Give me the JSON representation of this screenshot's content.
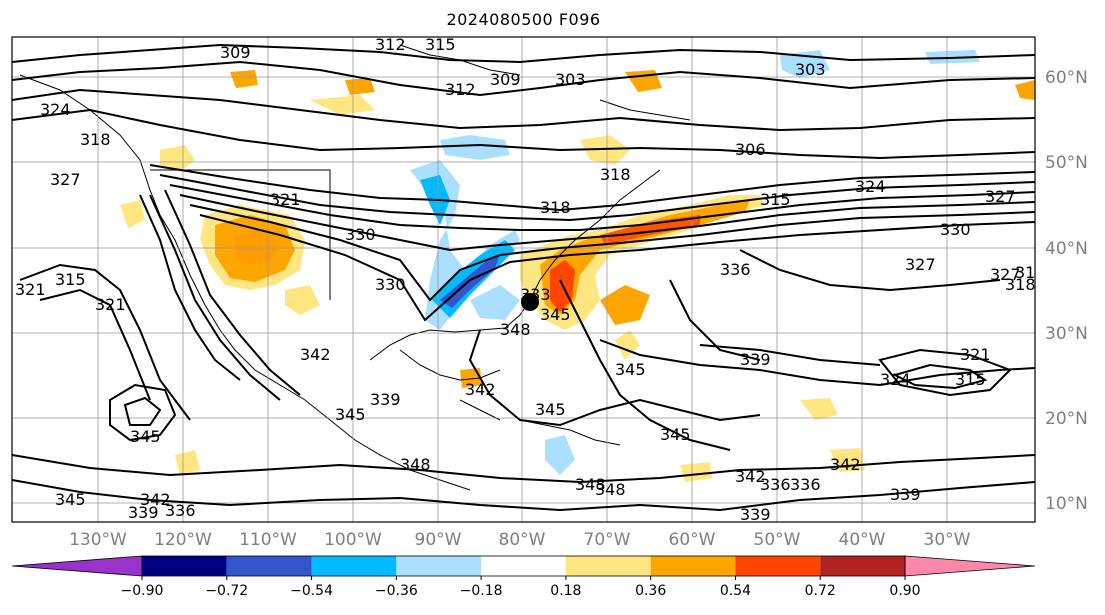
{
  "title": "2024080500 F096",
  "lon_labels": [
    "130°W",
    "120°W",
    "110°W",
    "100°W",
    "90°W",
    "80°W",
    "70°W",
    "60°W",
    "50°W",
    "40°W",
    "30°W"
  ],
  "lat_labels": [
    "60°N",
    "50°N",
    "40°N",
    "30°N",
    "20°N",
    "10°N"
  ],
  "colorbar": {
    "ticks": [
      "−0.90",
      "−0.72",
      "−0.54",
      "−0.36",
      "−0.18",
      "0.18",
      "0.36",
      "0.54",
      "0.72",
      "0.90"
    ],
    "colors": [
      "#9933cc",
      "#000080",
      "#3355cc",
      "#00bbff",
      "#aadfff",
      "#ffffff",
      "#ffe680",
      "#ffa500",
      "#ff4500",
      "#b22222",
      "#ff88aa"
    ]
  },
  "contour_labels": [
    "309",
    "312",
    "315",
    "312",
    "309",
    "303",
    "303",
    "306",
    "318",
    "327",
    "324",
    "321",
    "315",
    "321",
    "327",
    "330",
    "318",
    "318",
    "324",
    "327",
    "330",
    "333",
    "336",
    "327",
    "330",
    "321",
    "318",
    "315",
    "345",
    "342",
    "339",
    "336",
    "348",
    "345",
    "342",
    "339",
    "348",
    "345",
    "342",
    "339",
    "336",
    "339",
    "342",
    "345",
    "342",
    "339",
    "345",
    "348",
    "336",
    "324",
    "321",
    "315",
    "318",
    "345",
    "348",
    "345"
  ],
  "center_marker": "black-dot"
}
